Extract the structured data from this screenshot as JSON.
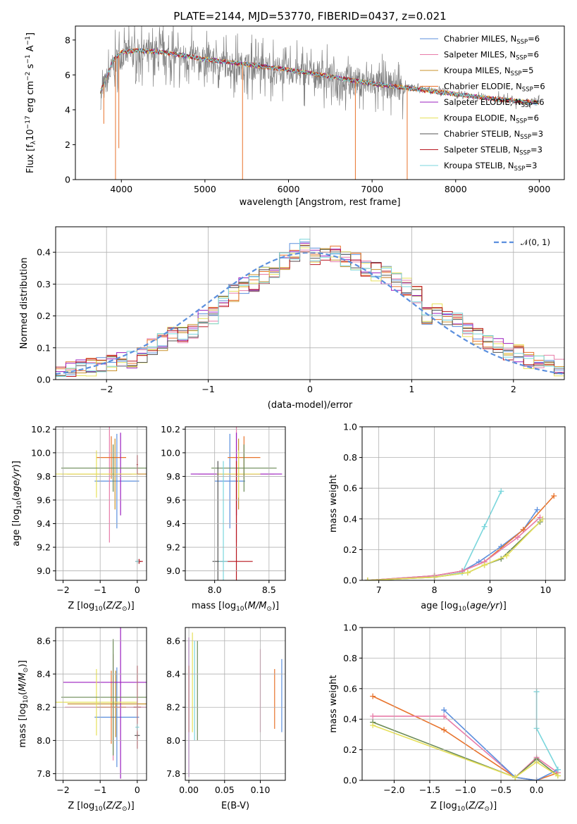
{
  "figure_title": "PLATE=2144, MJD=53770, FIBERID=0437, z=0.021",
  "colors": {
    "chabrier_miles": "#5b8fde",
    "salpeter_miles": "#e87ca8",
    "kroupa_miles": "#c8902a",
    "chabrier_elodie": "#e8732c",
    "salpeter_elodie": "#9b1fbf",
    "kroupa_elodie": "#e6e05a",
    "chabrier_stelib": "#555555",
    "salpeter_stelib": "#b8161e",
    "kroupa_stelib": "#7ad6dc",
    "olive": "#6a8a55",
    "gaussian": "#5b8fde"
  },
  "chart_data": [
    {
      "id": "spectrum",
      "type": "line",
      "xlabel": "wavelength [Angstrom, rest frame]",
      "ylabel": "Flux [f",
      "xlim": [
        3450,
        9300
      ],
      "ylim": [
        0,
        8.8
      ],
      "xticks": [
        4000,
        5000,
        6000,
        7000,
        8000,
        9000
      ],
      "yticks": [
        0,
        2,
        4,
        6,
        8
      ],
      "legend": [
        {
          "label": "Chabrier MILES, N",
          "n": "=6",
          "color": "#5b8fde"
        },
        {
          "label": "Salpeter MILES, N",
          "n": "=6",
          "color": "#e87ca8"
        },
        {
          "label": "Kroupa MILES, N",
          "n": "=5",
          "color": "#c8902a"
        },
        {
          "label": "Chabrier ELODIE, N",
          "n": "=6",
          "color": "#e8732c"
        },
        {
          "label": "Salpeter ELODIE, N",
          "n": "=6",
          "color": "#9b1fbf"
        },
        {
          "label": "Kroupa ELODIE, N",
          "n": "=6",
          "color": "#e6e05a"
        },
        {
          "label": "Chabrier STELIB, N",
          "n": "=3",
          "color": "#555555"
        },
        {
          "label": "Salpeter STELIB, N",
          "n": "=3",
          "color": "#b8161e"
        },
        {
          "label": "Kroupa STELIB, N",
          "n": "=3",
          "color": "#7ad6dc"
        }
      ],
      "model_envelope": [
        [
          3750,
          5.0
        ],
        [
          3900,
          6.8
        ],
        [
          4000,
          7.3
        ],
        [
          4200,
          7.4
        ],
        [
          4500,
          7.3
        ],
        [
          5000,
          6.9
        ],
        [
          5500,
          6.6
        ],
        [
          6000,
          6.3
        ],
        [
          6500,
          5.9
        ],
        [
          7000,
          5.5
        ],
        [
          7500,
          5.2
        ],
        [
          8000,
          4.9
        ],
        [
          8500,
          4.6
        ],
        [
          9000,
          4.4
        ]
      ],
      "data_envelope": [
        [
          3750,
          4.8
        ],
        [
          3900,
          6.5
        ],
        [
          4000,
          7.2
        ],
        [
          4300,
          7.3
        ],
        [
          5000,
          6.8
        ],
        [
          5500,
          6.5
        ],
        [
          6000,
          6.2
        ],
        [
          6500,
          5.9
        ],
        [
          7000,
          5.5
        ],
        [
          7500,
          5.3
        ],
        [
          8000,
          4.9
        ],
        [
          8500,
          4.6
        ],
        [
          9000,
          4.4
        ]
      ]
    },
    {
      "id": "residual_histogram",
      "type": "bar",
      "xlabel": "(data-model)/error",
      "ylabel": "Normed distribution",
      "xlim": [
        -2.5,
        2.5
      ],
      "ylim": [
        0,
        0.48
      ],
      "xticks": [
        -2,
        -1,
        0,
        1,
        2
      ],
      "yticks": [
        0.0,
        0.1,
        0.2,
        0.3,
        0.4
      ],
      "legend_label": "𝒩(0, 1)",
      "bin_width": 0.1,
      "bin_start": -2.5,
      "base_values": [
        0.02,
        0.03,
        0.035,
        0.04,
        0.045,
        0.05,
        0.055,
        0.06,
        0.08,
        0.1,
        0.12,
        0.15,
        0.14,
        0.16,
        0.19,
        0.2,
        0.24,
        0.27,
        0.29,
        0.3,
        0.33,
        0.35,
        0.37,
        0.4,
        0.42,
        0.39,
        0.4,
        0.39,
        0.38,
        0.37,
        0.35,
        0.34,
        0.33,
        0.31,
        0.29,
        0.27,
        0.2,
        0.21,
        0.19,
        0.18,
        0.15,
        0.14,
        0.12,
        0.1,
        0.09,
        0.08,
        0.06,
        0.05,
        0.05,
        0.04
      ]
    },
    {
      "id": "age_vs_Z",
      "type": "scatter",
      "xlabel": "Z [log",
      "ylabel": "age  [log",
      "xlim": [
        -2.2,
        0.25
      ],
      "ylim": [
        8.92,
        10.22
      ],
      "xticks": [
        -2,
        -1,
        0
      ],
      "yticks": [
        9.0,
        9.2,
        9.4,
        9.6,
        9.8,
        10.0,
        10.2
      ],
      "points": [
        {
          "x": -0.55,
          "xerr": 0.6,
          "y": 9.76,
          "yerr": 0.4,
          "color": "#5b8fde"
        },
        {
          "x": -0.75,
          "xerr": 1.3,
          "y": 9.82,
          "yerr": 0.58,
          "color": "#e87ca8"
        },
        {
          "x": -0.6,
          "xerr": 1.3,
          "y": 9.82,
          "yerr": 0.3,
          "color": "#c8902a"
        },
        {
          "x": -0.7,
          "xerr": 0.4,
          "y": 9.96,
          "yerr": 0.18,
          "color": "#e8732c"
        },
        {
          "x": -0.45,
          "xerr": 0.3,
          "y": 9.82,
          "yerr": 0.35,
          "color": "#9b1fbf"
        },
        {
          "x": -1.1,
          "xerr": 1.1,
          "y": 9.82,
          "yerr": 0.2,
          "color": "#e6e05a"
        },
        {
          "x": -0.65,
          "xerr": 1.4,
          "y": 9.87,
          "yerr": 0.2,
          "color": "#6a8a55"
        },
        {
          "x": 0.05,
          "xerr": 0.05,
          "y": 9.08,
          "yerr": 0.02,
          "color": "#555555"
        },
        {
          "x": 0.05,
          "xerr": 0.1,
          "y": 9.08,
          "yerr": 0.02,
          "color": "#b8161e"
        },
        {
          "x": 0.0,
          "xerr": 0.05,
          "y": 9.08,
          "yerr": 0.02,
          "color": "#7ad6dc"
        },
        {
          "x": 0.0,
          "xerr": 0.02,
          "y": 9.9,
          "yerr": 0.08,
          "color": "#b8161e"
        }
      ]
    },
    {
      "id": "age_vs_mass",
      "type": "scatter",
      "xlabel": "mass [log",
      "ylabel": "",
      "xlim": [
        7.73,
        8.65
      ],
      "ylim": [
        8.92,
        10.22
      ],
      "xticks": [
        8.0,
        8.5
      ],
      "yticks": [
        9.0,
        9.2,
        9.4,
        9.6,
        9.8,
        10.0,
        10.2
      ],
      "points": [
        {
          "x": 8.14,
          "xerr": 0.14,
          "y": 9.76,
          "yerr": 0.4,
          "color": "#5b8fde"
        },
        {
          "x": 8.2,
          "xerr": 0.35,
          "y": 9.82,
          "yerr": 0.58,
          "color": "#e87ca8"
        },
        {
          "x": 8.22,
          "xerr": 0.2,
          "y": 9.82,
          "yerr": 0.3,
          "color": "#c8902a"
        },
        {
          "x": 8.27,
          "xerr": 0.15,
          "y": 9.96,
          "yerr": 0.18,
          "color": "#e8732c"
        },
        {
          "x": 8.2,
          "xerr": 0.42,
          "y": 9.82,
          "yerr": 0.35,
          "color": "#9b1fbf"
        },
        {
          "x": 8.22,
          "xerr": 0.2,
          "y": 9.82,
          "yerr": 0.2,
          "color": "#e6e05a"
        },
        {
          "x": 8.27,
          "xerr": 0.3,
          "y": 9.87,
          "yerr": 0.2,
          "color": "#6a8a55"
        },
        {
          "x": 8.03,
          "xerr": 0.05,
          "y": 9.08,
          "yerr": 0.85,
          "color": "#555555"
        },
        {
          "x": 8.2,
          "xerr": 0.15,
          "y": 9.08,
          "yerr": 0.85,
          "color": "#b8161e"
        },
        {
          "x": 8.08,
          "xerr": 0.04,
          "y": 9.08,
          "yerr": 0.85,
          "color": "#7ad6dc"
        }
      ]
    },
    {
      "id": "mass_weight_vs_age",
      "type": "line",
      "xlabel": "age  [log",
      "ylabel": "mass weight",
      "xlim": [
        6.7,
        10.35
      ],
      "ylim": [
        0,
        1.0
      ],
      "xticks": [
        7,
        8,
        9,
        10
      ],
      "yticks": [
        0.0,
        0.2,
        0.4,
        0.6,
        0.8,
        1.0
      ],
      "series": [
        {
          "color": "#7ad6dc",
          "x": [
            6.8,
            8.0,
            8.5,
            8.9,
            9.2
          ],
          "y": [
            0.0,
            0.02,
            0.05,
            0.35,
            0.58
          ]
        },
        {
          "color": "#5b8fde",
          "x": [
            6.8,
            8.0,
            8.5,
            8.8,
            9.2,
            9.6,
            9.85
          ],
          "y": [
            0.0,
            0.03,
            0.06,
            0.12,
            0.22,
            0.33,
            0.46
          ]
        },
        {
          "color": "#e8732c",
          "x": [
            6.8,
            8.0,
            8.5,
            8.9,
            9.6,
            10.15
          ],
          "y": [
            0.0,
            0.03,
            0.06,
            0.12,
            0.33,
            0.55
          ]
        },
        {
          "color": "#e87ca8",
          "x": [
            6.8,
            8.0,
            8.5,
            8.9,
            9.5,
            9.9
          ],
          "y": [
            0.0,
            0.03,
            0.06,
            0.12,
            0.28,
            0.41
          ]
        },
        {
          "color": "#6a8a55",
          "x": [
            6.8,
            8.0,
            8.6,
            8.9,
            9.2,
            9.9
          ],
          "y": [
            0.0,
            0.02,
            0.05,
            0.1,
            0.14,
            0.38
          ]
        },
        {
          "color": "#e6e05a",
          "x": [
            6.8,
            8.0,
            8.6,
            8.9,
            9.3,
            9.95
          ],
          "y": [
            0.0,
            0.02,
            0.05,
            0.1,
            0.16,
            0.4
          ]
        }
      ]
    },
    {
      "id": "mass_vs_Z",
      "type": "scatter",
      "xlabel": "Z [log",
      "ylabel": "mass [log",
      "xlim": [
        -2.2,
        0.25
      ],
      "ylim": [
        7.76,
        8.68
      ],
      "xticks": [
        -2,
        -1,
        0
      ],
      "yticks": [
        7.8,
        8.0,
        8.2,
        8.4,
        8.6
      ],
      "points": [
        {
          "x": -0.55,
          "xerr": 0.6,
          "y": 8.14,
          "yerr": 0.3,
          "color": "#5b8fde"
        },
        {
          "x": -0.65,
          "xerr": 1.3,
          "y": 8.2,
          "yerr": 0.32,
          "color": "#e87ca8"
        },
        {
          "x": -0.58,
          "xerr": 1.3,
          "y": 8.22,
          "yerr": 0.2,
          "color": "#c8902a"
        },
        {
          "x": -0.7,
          "xerr": 0.4,
          "y": 8.2,
          "yerr": 0.22,
          "color": "#e8732c"
        },
        {
          "x": -0.45,
          "xerr": 1.55,
          "y": 8.35,
          "yerr": 0.58,
          "color": "#9b1fbf"
        },
        {
          "x": -1.1,
          "xerr": 1.1,
          "y": 8.23,
          "yerr": 0.2,
          "color": "#e6e05a"
        },
        {
          "x": -0.65,
          "xerr": 1.4,
          "y": 8.26,
          "yerr": 0.35,
          "color": "#6a8a55"
        },
        {
          "x": 0.0,
          "xerr": 0.07,
          "y": 8.03,
          "yerr": 0.02,
          "color": "#555555"
        },
        {
          "x": 0.0,
          "xerr": 0.1,
          "y": 8.2,
          "yerr": 0.25,
          "color": "#b8161e"
        },
        {
          "x": 0.0,
          "xerr": 0.05,
          "y": 8.08,
          "yerr": 0.02,
          "color": "#7ad6dc"
        }
      ]
    },
    {
      "id": "mass_vs_ebv",
      "type": "scatter",
      "xlabel": "E(B-V)",
      "ylabel": "",
      "xlim": [
        -0.005,
        0.135
      ],
      "ylim": [
        7.76,
        8.68
      ],
      "xticks": [
        0.0,
        0.05,
        0.1
      ],
      "yticks": [
        7.8,
        8.0,
        8.2,
        8.4,
        8.6
      ],
      "points": [
        {
          "x": 0.13,
          "y": 8.27,
          "yerr": 0.22,
          "color": "#5b8fde"
        },
        {
          "x": 0.1,
          "y": 8.3,
          "yerr": 0.25,
          "color": "#e87ca8"
        },
        {
          "x": 0.12,
          "y": 8.25,
          "yerr": 0.18,
          "color": "#e8732c"
        },
        {
          "x": 0.0,
          "y": 8.2,
          "yerr": 0.42,
          "color": "#9b1fbf"
        },
        {
          "x": 0.005,
          "y": 8.35,
          "yerr": 0.3,
          "color": "#e6e05a"
        },
        {
          "x": 0.012,
          "y": 8.3,
          "yerr": 0.3,
          "color": "#6a8a55"
        },
        {
          "x": 0.0,
          "y": 8.25,
          "yerr": 0.2,
          "color": "#b8161e"
        },
        {
          "x": 0.008,
          "y": 8.3,
          "yerr": 0.3,
          "color": "#7ad6dc"
        }
      ]
    },
    {
      "id": "mass_weight_vs_Z",
      "type": "line",
      "xlabel": "Z [log",
      "ylabel": "mass weight",
      "xlim": [
        -2.45,
        0.4
      ],
      "ylim": [
        0,
        1.0
      ],
      "xticks": [
        -2.0,
        -1.5,
        -1.0,
        -0.5,
        0.0
      ],
      "yticks": [
        0.0,
        0.2,
        0.4,
        0.6,
        0.8,
        1.0
      ],
      "series": [
        {
          "color": "#e8732c",
          "x": [
            -2.3,
            -1.3,
            -0.3,
            0.0,
            0.3
          ],
          "y": [
            0.55,
            0.33,
            0.02,
            0.0,
            0.05
          ]
        },
        {
          "color": "#e87ca8",
          "x": [
            -2.3,
            -1.3,
            -0.3,
            0.0,
            0.3
          ],
          "y": [
            0.42,
            0.42,
            0.02,
            0.15,
            0.05
          ]
        },
        {
          "color": "#5b8fde",
          "x": [
            -1.3,
            -0.3,
            0.0,
            0.3
          ],
          "y": [
            0.46,
            0.02,
            0.0,
            0.07
          ]
        },
        {
          "color": "#6a8a55",
          "x": [
            -2.3,
            -0.3,
            0.0,
            0.3
          ],
          "y": [
            0.38,
            0.02,
            0.14,
            0.03
          ]
        },
        {
          "color": "#e6e05a",
          "x": [
            -2.3,
            -0.3,
            0.0,
            0.3
          ],
          "y": [
            0.36,
            0.02,
            0.12,
            0.03
          ]
        },
        {
          "color": "#7ad6dc",
          "x": [
            0.0,
            0.0,
            0.0,
            0.3
          ],
          "y": [
            0.58,
            0.58,
            0.34,
            0.07
          ]
        }
      ]
    }
  ]
}
